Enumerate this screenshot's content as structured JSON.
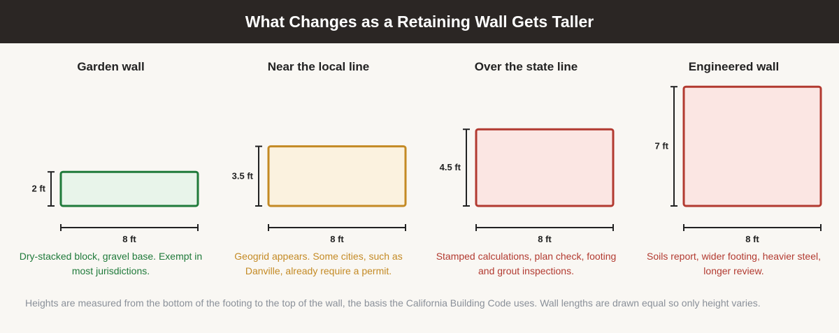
{
  "title": "What Changes as a Retaining Wall Gets Taller",
  "panels": [
    {
      "title": "Garden wall",
      "height_ft": 2,
      "height_label": "2 ft",
      "length_label": "8 ft",
      "description": "Dry-stacked block, gravel base. Exempt in most jurisdictions.",
      "stroke": "#1f7a3a",
      "fill": "#e8f4ea",
      "text_color": "#1f7a3a"
    },
    {
      "title": "Near the local line",
      "height_ft": 3.5,
      "height_label": "3.5 ft",
      "length_label": "8 ft",
      "description": "Geogrid appears. Some cities, such as Danville, already require a permit.",
      "stroke": "#c48a24",
      "fill": "#fbf2df",
      "text_color": "#c48a24"
    },
    {
      "title": "Over the state line",
      "height_ft": 4.5,
      "height_label": "4.5 ft",
      "length_label": "8 ft",
      "description": "Stamped calculations, plan check, footing and grout inspections.",
      "stroke": "#b23a30",
      "fill": "#fbe6e3",
      "text_color": "#b23a30"
    },
    {
      "title": "Engineered wall",
      "height_ft": 7,
      "height_label": "7 ft",
      "length_label": "8 ft",
      "description": "Soils report, wider footing, heavier steel, longer review.",
      "stroke": "#b23a30",
      "fill": "#fbe6e3",
      "text_color": "#b23a30"
    }
  ],
  "footnote": "Heights are measured from the bottom of the footing to the top of the wall, the basis the California Building Code uses. Wall lengths are drawn equal so only height varies."
}
